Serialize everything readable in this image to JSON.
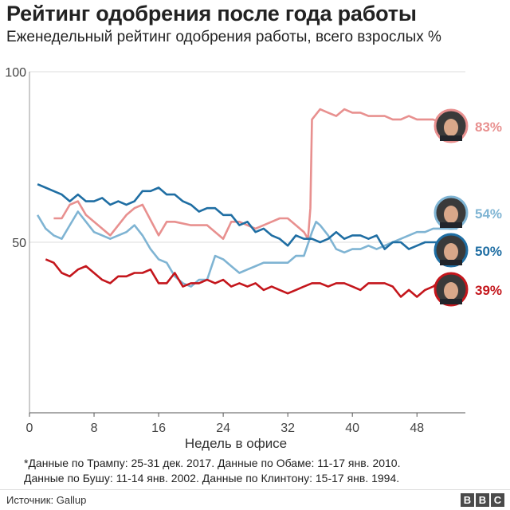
{
  "title": "Рейтинг одобрения после года работы",
  "subtitle": "Еженедельный рейтинг одобрения работы, всего взрослых %",
  "footnote": {
    "line1": "*Данные по Трампу: 25-31 дек. 2017. Данные по Обаме: 11-17 янв. 2010.",
    "line2": "Данные по Бушу: 11-14 янв. 2002. Данные по Клинтону: 15-17 янв. 1994."
  },
  "source": "Источник: Gallup",
  "logo": [
    "B",
    "B",
    "C"
  ],
  "chart_data": {
    "type": "line",
    "xlabel": "Недель в офисе",
    "ylabel": "",
    "xlim": [
      0,
      54
    ],
    "ylim": [
      0,
      100
    ],
    "x_ticks": [
      0,
      8,
      16,
      24,
      32,
      40,
      48
    ],
    "y_ticks": [
      50,
      100
    ],
    "grid": false,
    "series": [
      {
        "president": "bush",
        "color": "#e8908f",
        "end_label": "83%",
        "icon": "bush-portrait",
        "points": [
          [
            3,
            57
          ],
          [
            4,
            57
          ],
          [
            5,
            61
          ],
          [
            6,
            62
          ],
          [
            7,
            58
          ],
          [
            8,
            56
          ],
          [
            10,
            52
          ],
          [
            12,
            58
          ],
          [
            13,
            60
          ],
          [
            14,
            61
          ],
          [
            16,
            52
          ],
          [
            17,
            56
          ],
          [
            18,
            56
          ],
          [
            20,
            55
          ],
          [
            22,
            55
          ],
          [
            24,
            51
          ],
          [
            25,
            56
          ],
          [
            26,
            56
          ],
          [
            28,
            54
          ],
          [
            30,
            56
          ],
          [
            31,
            57
          ],
          [
            32,
            57
          ],
          [
            33,
            55
          ],
          [
            34,
            53
          ],
          [
            34.5,
            51
          ],
          [
            34.8,
            60
          ],
          [
            35,
            86
          ],
          [
            36,
            89
          ],
          [
            37,
            88
          ],
          [
            38,
            87
          ],
          [
            39,
            89
          ],
          [
            40,
            88
          ],
          [
            41,
            88
          ],
          [
            42,
            87
          ],
          [
            43,
            87
          ],
          [
            44,
            87
          ],
          [
            45,
            86
          ],
          [
            46,
            86
          ],
          [
            47,
            87
          ],
          [
            48,
            86
          ],
          [
            49,
            86
          ],
          [
            50,
            86
          ],
          [
            51,
            85
          ],
          [
            52,
            84
          ],
          [
            53,
            83
          ]
        ]
      },
      {
        "president": "clinton",
        "color": "#7fb4d3",
        "end_label": "54%",
        "icon": "clinton-portrait",
        "points": [
          [
            1,
            58
          ],
          [
            2,
            54
          ],
          [
            3,
            52
          ],
          [
            4,
            51
          ],
          [
            5,
            55
          ],
          [
            6,
            59
          ],
          [
            7,
            56
          ],
          [
            8,
            53
          ],
          [
            9,
            52
          ],
          [
            10,
            51
          ],
          [
            12,
            53
          ],
          [
            13,
            55
          ],
          [
            14,
            52
          ],
          [
            15,
            48
          ],
          [
            16,
            45
          ],
          [
            17,
            44
          ],
          [
            18,
            40
          ],
          [
            19,
            38
          ],
          [
            20,
            37
          ],
          [
            21,
            39
          ],
          [
            22,
            39
          ],
          [
            23,
            46
          ],
          [
            24,
            45
          ],
          [
            25,
            43
          ],
          [
            26,
            41
          ],
          [
            27,
            42
          ],
          [
            28,
            43
          ],
          [
            29,
            44
          ],
          [
            30,
            44
          ],
          [
            32,
            44
          ],
          [
            33,
            46
          ],
          [
            34,
            46
          ],
          [
            35,
            53
          ],
          [
            35.5,
            56
          ],
          [
            36,
            55
          ],
          [
            37,
            52
          ],
          [
            38,
            48
          ],
          [
            39,
            47
          ],
          [
            40,
            48
          ],
          [
            41,
            48
          ],
          [
            42,
            49
          ],
          [
            43,
            48
          ],
          [
            44,
            49
          ],
          [
            45,
            50
          ],
          [
            46,
            51
          ],
          [
            47,
            52
          ],
          [
            48,
            53
          ],
          [
            49,
            53
          ],
          [
            50,
            54
          ],
          [
            51,
            54
          ],
          [
            52,
            54
          ],
          [
            53,
            54
          ]
        ]
      },
      {
        "president": "obama",
        "color": "#1f6ea3",
        "end_label": "50%",
        "icon": "obama-portrait",
        "points": [
          [
            1,
            67
          ],
          [
            2,
            66
          ],
          [
            3,
            65
          ],
          [
            4,
            64
          ],
          [
            5,
            62
          ],
          [
            6,
            64
          ],
          [
            7,
            62
          ],
          [
            8,
            62
          ],
          [
            9,
            63
          ],
          [
            10,
            61
          ],
          [
            11,
            62
          ],
          [
            12,
            61
          ],
          [
            13,
            62
          ],
          [
            14,
            65
          ],
          [
            15,
            65
          ],
          [
            16,
            66
          ],
          [
            17,
            64
          ],
          [
            18,
            64
          ],
          [
            19,
            62
          ],
          [
            20,
            61
          ],
          [
            21,
            59
          ],
          [
            22,
            60
          ],
          [
            23,
            60
          ],
          [
            24,
            58
          ],
          [
            25,
            58
          ],
          [
            26,
            55
          ],
          [
            27,
            56
          ],
          [
            28,
            53
          ],
          [
            29,
            54
          ],
          [
            30,
            52
          ],
          [
            31,
            51
          ],
          [
            32,
            49
          ],
          [
            33,
            52
          ],
          [
            34,
            51
          ],
          [
            35,
            51
          ],
          [
            36,
            50
          ],
          [
            37,
            51
          ],
          [
            38,
            53
          ],
          [
            39,
            51
          ],
          [
            40,
            52
          ],
          [
            41,
            52
          ],
          [
            42,
            51
          ],
          [
            43,
            52
          ],
          [
            44,
            48
          ],
          [
            45,
            50
          ],
          [
            46,
            50
          ],
          [
            47,
            48
          ],
          [
            48,
            49
          ],
          [
            49,
            50
          ],
          [
            50,
            50
          ],
          [
            51,
            50
          ],
          [
            52,
            50
          ],
          [
            53,
            50
          ]
        ]
      },
      {
        "president": "trump",
        "color": "#c4161c",
        "end_label": "39%",
        "icon": "trump-portrait",
        "points": [
          [
            2,
            45
          ],
          [
            3,
            44
          ],
          [
            4,
            41
          ],
          [
            5,
            40
          ],
          [
            6,
            42
          ],
          [
            7,
            43
          ],
          [
            8,
            41
          ],
          [
            9,
            39
          ],
          [
            10,
            38
          ],
          [
            11,
            40
          ],
          [
            12,
            40
          ],
          [
            13,
            41
          ],
          [
            14,
            41
          ],
          [
            15,
            42
          ],
          [
            16,
            38
          ],
          [
            17,
            38
          ],
          [
            18,
            41
          ],
          [
            19,
            37
          ],
          [
            20,
            38
          ],
          [
            21,
            38
          ],
          [
            22,
            39
          ],
          [
            23,
            38
          ],
          [
            24,
            39
          ],
          [
            25,
            37
          ],
          [
            26,
            38
          ],
          [
            27,
            37
          ],
          [
            28,
            38
          ],
          [
            29,
            36
          ],
          [
            30,
            37
          ],
          [
            31,
            36
          ],
          [
            32,
            35
          ],
          [
            33,
            36
          ],
          [
            34,
            37
          ],
          [
            35,
            38
          ],
          [
            36,
            38
          ],
          [
            37,
            37
          ],
          [
            38,
            38
          ],
          [
            39,
            38
          ],
          [
            40,
            37
          ],
          [
            41,
            36
          ],
          [
            42,
            38
          ],
          [
            43,
            38
          ],
          [
            44,
            38
          ],
          [
            45,
            37
          ],
          [
            46,
            34
          ],
          [
            47,
            36
          ],
          [
            48,
            34
          ],
          [
            49,
            36
          ],
          [
            50,
            37
          ],
          [
            51,
            39
          ]
        ]
      }
    ]
  }
}
